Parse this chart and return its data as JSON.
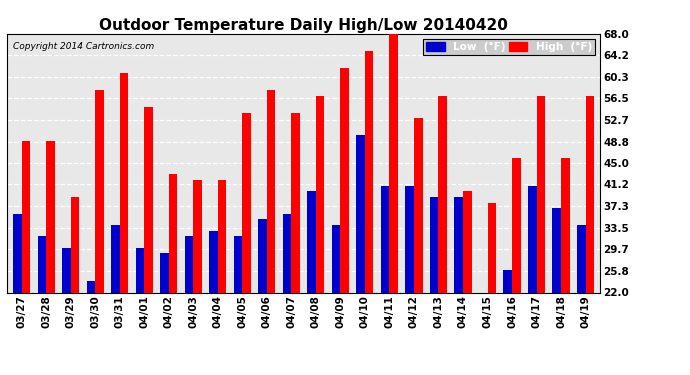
{
  "title": "Outdoor Temperature Daily High/Low 20140420",
  "copyright": "Copyright 2014 Cartronics.com",
  "categories": [
    "03/27",
    "03/28",
    "03/29",
    "03/30",
    "03/31",
    "04/01",
    "04/02",
    "04/03",
    "04/04",
    "04/05",
    "04/06",
    "04/07",
    "04/08",
    "04/09",
    "04/10",
    "04/11",
    "04/12",
    "04/13",
    "04/14",
    "04/15",
    "04/16",
    "04/17",
    "04/18",
    "04/19"
  ],
  "high": [
    49,
    49,
    39,
    58,
    61,
    55,
    43,
    42,
    42,
    54,
    58,
    54,
    57,
    62,
    65,
    68,
    53,
    57,
    40,
    38,
    46,
    57,
    46,
    57
  ],
  "low": [
    36,
    32,
    30,
    24,
    34,
    30,
    29,
    32,
    33,
    32,
    35,
    36,
    40,
    34,
    50,
    41,
    41,
    39,
    39,
    22,
    26,
    41,
    37,
    34
  ],
  "ylim": [
    22.0,
    68.0
  ],
  "yticks": [
    22.0,
    25.8,
    29.7,
    33.5,
    37.3,
    41.2,
    45.0,
    48.8,
    52.7,
    56.5,
    60.3,
    64.2,
    68.0
  ],
  "high_color": "#ff0000",
  "low_color": "#0000cc",
  "bg_color": "#ffffff",
  "plot_bg_color": "#e8e8e8",
  "grid_color": "#ffffff",
  "title_fontsize": 11,
  "legend_low_label": "Low  (°F)",
  "legend_high_label": "High  (°F)"
}
